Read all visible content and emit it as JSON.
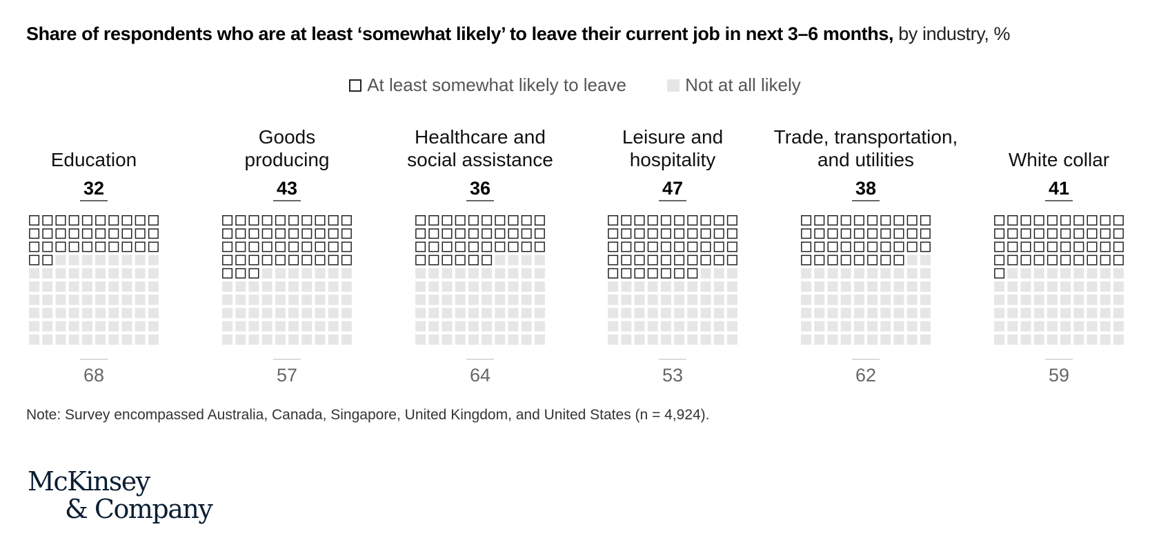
{
  "title": {
    "bold": "Share of respondents who are at least ‘somewhat likely’ to leave their current job in next 3–6 months,",
    "normal": "by industry, %"
  },
  "legend": {
    "likely": "At least somewhat likely to leave",
    "not_likely": "Not at all likely"
  },
  "colors": {
    "outline": "#222222",
    "grey": "#e6e6e6",
    "label_grey": "#666666"
  },
  "chart_data": {
    "type": "waffle",
    "units_per_panel": 100,
    "series_names": [
      "At least somewhat likely to leave",
      "Not at all likely"
    ],
    "categories": [
      {
        "label_lines": [
          "Education"
        ],
        "likely": 32,
        "not_likely": 68
      },
      {
        "label_lines": [
          "Goods",
          "producing"
        ],
        "likely": 43,
        "not_likely": 57
      },
      {
        "label_lines": [
          "Healthcare and",
          "social assistance"
        ],
        "likely": 36,
        "not_likely": 64
      },
      {
        "label_lines": [
          "Leisure and",
          "hospitality"
        ],
        "likely": 47,
        "not_likely": 53
      },
      {
        "label_lines": [
          "Trade, transportation,",
          "and utilities"
        ],
        "likely": 38,
        "not_likely": 62
      },
      {
        "label_lines": [
          "White collar"
        ],
        "likely": 41,
        "not_likely": 59
      }
    ]
  },
  "note": "Note: Survey encompassed Australia, Canada, Singapore, United Kingdom, and United States (n = 4,924).",
  "logo": {
    "line1": "McKinsey",
    "line2": "& Company"
  }
}
